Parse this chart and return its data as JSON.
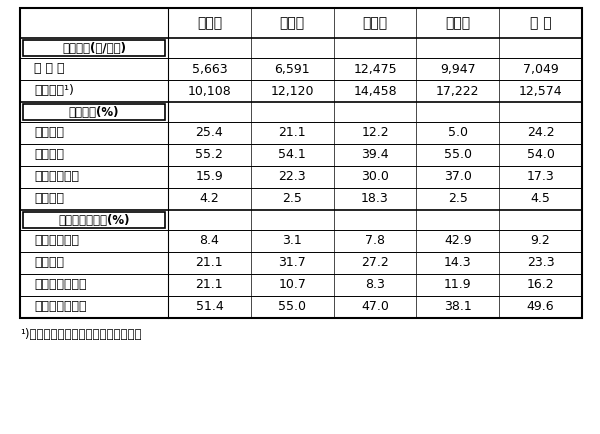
{
  "col_headers": [
    "牛ふん",
    "豚ふん",
    "鶏ふん",
    "バーク",
    "全 体"
  ],
  "sections": [
    {
      "header": "販売価格(円/トン)",
      "rows": [
        {
          "label": "全 施 設",
          "values": [
            "5,663",
            "6,591",
            "12,475",
            "9,947",
            "7,049"
          ]
        },
        {
          "label": "袋詰施設¹)",
          "values": [
            "10,108",
            "12,120",
            "14,458",
            "17,222",
            "12,574"
          ]
        }
      ]
    },
    {
      "header": "流通範囲(%)",
      "rows": [
        {
          "label": "自家消費",
          "values": [
            "25.4",
            "21.1",
            "12.2",
            "5.0",
            "24.2"
          ]
        },
        {
          "label": "管区内で",
          "values": [
            "55.2",
            "54.1",
            "39.4",
            "55.0",
            "54.0"
          ]
        },
        {
          "label": "他市町村へも",
          "values": [
            "15.9",
            "22.3",
            "30.0",
            "37.0",
            "17.3"
          ]
        },
        {
          "label": "他県へも",
          "values": [
            "4.2",
            "2.5",
            "18.3",
            "2.5",
            "4.5"
          ]
        }
      ]
    },
    {
      "header": "生産上の問題点(%)",
      "rows": [
        {
          "label": "原料入手困難",
          "values": [
            "8.4",
            "3.1",
            "7.8",
            "42.9",
            "9.2"
          ]
        },
        {
          "label": "悪臭問題",
          "values": [
            "21.1",
            "31.7",
            "27.2",
            "14.3",
            "23.3"
          ]
        },
        {
          "label": "堆肥品質不安定",
          "values": [
            "21.1",
            "10.7",
            "8.3",
            "11.9",
            "16.2"
          ]
        },
        {
          "label": "需要一時期集中",
          "values": [
            "51.4",
            "55.0",
            "47.0",
            "38.1",
            "49.6"
          ]
        }
      ]
    }
  ],
  "footnote": "¹)袋詰め販売を行っている施設に限定",
  "bg_color": "#ffffff",
  "border_color": "#000000",
  "text_color": "#000000",
  "fig_width": 6.0,
  "fig_height": 4.34,
  "dpi": 100
}
